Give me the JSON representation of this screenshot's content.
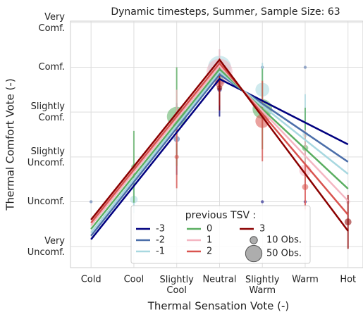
{
  "chart_data": {
    "type": "scatter",
    "title": "Dynamic timesteps, Summer, Sample Size: 63",
    "xlabel": "Thermal Sensation Vote (-)",
    "ylabel": "Thermal Comfort Vote (-)",
    "xlim": [
      -3.48,
      3.35
    ],
    "ylim": [
      -0.47,
      5.03
    ],
    "xticks": [
      {
        "value": -3,
        "label": "Cold"
      },
      {
        "value": -2,
        "label": "Cool"
      },
      {
        "value": -1,
        "label": "Slightly Cool"
      },
      {
        "value": 0,
        "label": "Neutral"
      },
      {
        "value": 1,
        "label": "Slightly Warm"
      },
      {
        "value": 2,
        "label": "Warm"
      },
      {
        "value": 3,
        "label": "Hot"
      }
    ],
    "yticks": [
      {
        "value": 0,
        "label": "Very Uncomf."
      },
      {
        "value": 1,
        "label": "Uncomf."
      },
      {
        "value": 2,
        "label": "Slightly Uncomf."
      },
      {
        "value": 3,
        "label": "Slightly Comf."
      },
      {
        "value": 4,
        "label": "Comf."
      },
      {
        "value": 5,
        "label": "Very Comf."
      }
    ],
    "grid": true,
    "legend_title": "previous TSV :",
    "size_legend": [
      {
        "value": 10,
        "label": "10 Obs."
      },
      {
        "value": 50,
        "label": "50 Obs."
      }
    ],
    "series": [
      {
        "name": "-3",
        "color": "#00007f",
        "x": [
          0,
          1,
          2
        ],
        "values": [
          3.5,
          1.0,
          1.0
        ],
        "sizes": [
          2,
          1,
          1
        ],
        "errors": [
          0.6,
          null,
          null
        ],
        "line": {
          "x": [
            -3,
            0,
            3
          ],
          "values": [
            0.16,
            3.74,
            2.28
          ]
        }
      },
      {
        "name": "-2",
        "color": "#4b6ea9",
        "x": [
          -3,
          -1,
          0,
          1,
          2
        ],
        "values": [
          1.0,
          2.4,
          3.7,
          4.0,
          4.0
        ],
        "sizes": [
          1,
          4,
          8,
          1,
          1
        ],
        "errors": [
          null,
          0.8,
          0.5,
          null,
          null
        ],
        "line": {
          "x": [
            -3,
            0,
            3
          ],
          "values": [
            0.24,
            3.84,
            1.89
          ]
        }
      },
      {
        "name": "-1",
        "color": "#a8d8e0",
        "x": [
          -2,
          0,
          1,
          2
        ],
        "values": [
          1.05,
          4.0,
          3.5,
          2.5
        ],
        "sizes": [
          6,
          55,
          20,
          3
        ],
        "errors": [
          0.3,
          0.4,
          0.6,
          0.9
        ],
        "line": {
          "x": [
            -3,
            0,
            3
          ],
          "values": [
            0.31,
            3.9,
            1.62
          ]
        }
      },
      {
        "name": "0",
        "color": "#5aae61",
        "x": [
          -2,
          -1,
          0,
          1,
          2
        ],
        "values": [
          1.78,
          2.9,
          3.8,
          3.07,
          2.2
        ],
        "sizes": [
          3,
          40,
          6,
          40,
          4
        ],
        "errors": [
          0.8,
          1.1,
          0.4,
          0.9,
          0.9
        ],
        "line": {
          "x": [
            -3,
            0,
            3
          ],
          "values": [
            0.39,
            3.96,
            1.29
          ]
        }
      },
      {
        "name": "1",
        "color": "#f4b6c2",
        "x": [
          -1,
          0,
          2,
          3
        ],
        "values": [
          2.9,
          3.9,
          1.7,
          1.0
        ],
        "sizes": [
          3,
          70,
          15,
          2
        ],
        "errors": [
          0.6,
          0.5,
          0.9,
          null
        ],
        "line": {
          "x": [
            -3,
            0,
            3
          ],
          "values": [
            0.47,
            4.03,
            1.02
          ]
        }
      },
      {
        "name": "2",
        "color": "#d9534f",
        "x": [
          -1,
          0,
          1,
          2
        ],
        "values": [
          2.0,
          3.65,
          2.8,
          1.33
        ],
        "sizes": [
          2,
          8,
          20,
          4
        ],
        "errors": [
          0.7,
          0.5,
          0.9,
          0.5
        ],
        "line": {
          "x": [
            -3,
            0,
            3
          ],
          "values": [
            0.53,
            4.09,
            0.71
          ]
        }
      },
      {
        "name": "3",
        "color": "#8b0000",
        "x": [
          0,
          3
        ],
        "values": [
          3.54,
          0.55
        ],
        "sizes": [
          3,
          5
        ],
        "errors": [
          0.5,
          0.6
        ],
        "line": {
          "x": [
            -3,
            0,
            3
          ],
          "values": [
            0.6,
            4.17,
            0.35
          ]
        }
      }
    ]
  }
}
